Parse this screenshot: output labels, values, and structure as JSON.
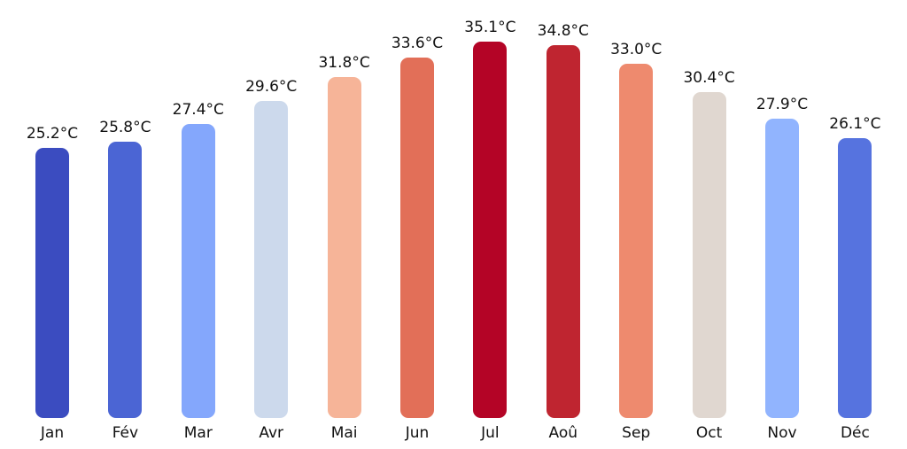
{
  "chart_data": {
    "type": "bar",
    "title": "",
    "xlabel": "",
    "ylabel": "",
    "unit": "°C",
    "categories": [
      "Jan",
      "Fév",
      "Mar",
      "Avr",
      "Mai",
      "Jun",
      "Jul",
      "Aoû",
      "Sep",
      "Oct",
      "Nov",
      "Déc"
    ],
    "values": [
      25.2,
      25.8,
      27.4,
      29.6,
      31.8,
      33.6,
      35.1,
      34.8,
      33.0,
      30.4,
      27.9,
      26.1
    ],
    "labels": [
      "25.2°C",
      "25.8°C",
      "27.4°C",
      "29.6°C",
      "31.8°C",
      "33.6°C",
      "35.1°C",
      "34.8°C",
      "33.0°C",
      "30.4°C",
      "27.9°C",
      "26.1°C"
    ],
    "bar_colors": [
      "#3b4cc0",
      "#4b65d4",
      "#84a7fc",
      "#ccd9ec",
      "#f6b498",
      "#e26f58",
      "#b40426",
      "#bf2530",
      "#ee8a6e",
      "#e0d7d0",
      "#91b4fe",
      "#5673df"
    ],
    "ylim": [
      0,
      39
    ],
    "grid": false,
    "legend": "none"
  },
  "colors": {
    "background": "#ffffff",
    "text": "#111111"
  }
}
